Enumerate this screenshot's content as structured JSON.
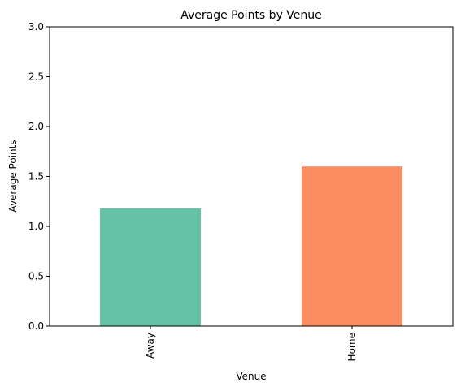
{
  "chart_data": {
    "type": "bar",
    "title": "Average Points by Venue",
    "xlabel": "Venue",
    "ylabel": "Average Points",
    "categories": [
      "Away",
      "Home"
    ],
    "values": [
      1.18,
      1.6
    ],
    "colors": [
      "#66c2a5",
      "#fc8d62"
    ],
    "ylim": [
      0,
      3
    ],
    "yticks": [
      "0.0",
      "0.5",
      "1.0",
      "1.5",
      "2.0",
      "2.5",
      "3.0"
    ],
    "ytick_values": [
      0,
      0.5,
      1.0,
      1.5,
      2.0,
      2.5,
      3.0
    ],
    "xtick_rotation": 90,
    "grid": false,
    "legend": "none"
  }
}
